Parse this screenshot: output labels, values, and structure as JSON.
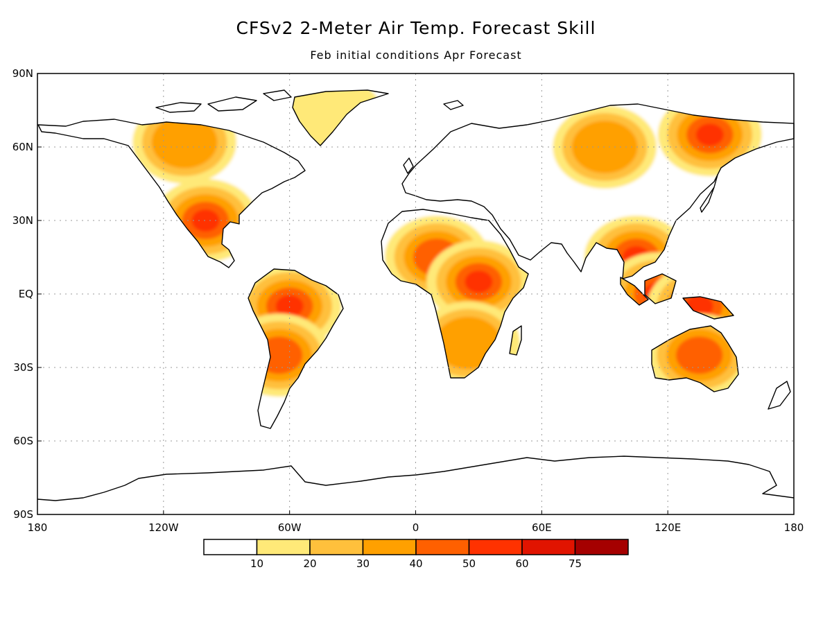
{
  "title": "CFSv2 2-Meter Air Temp. Forecast Skill",
  "subtitle": "Feb initial conditions   Apr Forecast",
  "map": {
    "lat_labels": [
      "90N",
      "60N",
      "30N",
      "EQ",
      "30S",
      "60S",
      "90S"
    ],
    "lon_labels": [
      "180",
      "120W",
      "60W",
      "0",
      "60E",
      "120E",
      "180"
    ]
  },
  "legend": {
    "colors": [
      "#ffffff",
      "#ffe978",
      "#ffc03c",
      "#ffa000",
      "#ff6000",
      "#ff3200",
      "#e11400",
      "#a50000"
    ],
    "labels": [
      "10",
      "20",
      "30",
      "40",
      "50",
      "60",
      "75"
    ]
  },
  "chart_data": {
    "type": "heatmap",
    "title": "CFSv2 2-Meter Air Temp. Forecast Skill",
    "subtitle": "Feb initial conditions   Apr Forecast",
    "x_range": [
      -180,
      180
    ],
    "y_range": [
      -90,
      90
    ],
    "x_ticks": [
      "180",
      "120W",
      "60W",
      "0",
      "60E",
      "120E",
      "180"
    ],
    "y_ticks": [
      "90N",
      "60N",
      "30N",
      "EQ",
      "30S",
      "60S",
      "90S"
    ],
    "grid": true,
    "levels": [
      10,
      20,
      30,
      40,
      50,
      60,
      75
    ],
    "level_colors": [
      "#ffffff",
      "#ffe978",
      "#ffc03c",
      "#ffa000",
      "#ff6000",
      "#ff3200",
      "#e11400",
      "#a50000"
    ],
    "regions": [
      {
        "lon": -100,
        "lat": 30,
        "skill": 55
      },
      {
        "lon": -110,
        "lat": 62,
        "skill": 30
      },
      {
        "lon": -60,
        "lat": -5,
        "skill": 65
      },
      {
        "lon": -65,
        "lat": -25,
        "skill": 40
      },
      {
        "lon": 10,
        "lat": 15,
        "skill": 45
      },
      {
        "lon": 30,
        "lat": 5,
        "skill": 50
      },
      {
        "lon": 25,
        "lat": -20,
        "skill": 30
      },
      {
        "lon": 90,
        "lat": 60,
        "skill": 30
      },
      {
        "lon": 140,
        "lat": 65,
        "skill": 50
      },
      {
        "lon": 105,
        "lat": 15,
        "skill": 65
      },
      {
        "lon": 115,
        "lat": 0,
        "skill": 65
      },
      {
        "lon": 135,
        "lat": -5,
        "skill": 60
      },
      {
        "lon": 135,
        "lat": -25,
        "skill": 40
      },
      {
        "lon": -40,
        "lat": 72,
        "skill": 15
      }
    ]
  }
}
